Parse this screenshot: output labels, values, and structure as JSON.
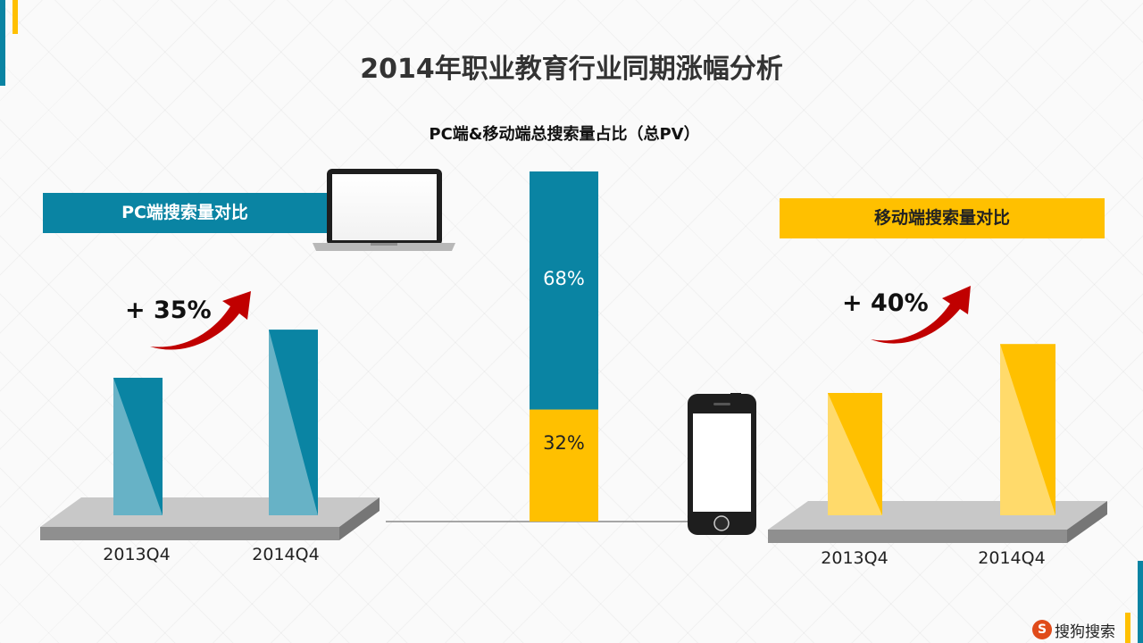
{
  "title": "2014年职业教育行业同期涨幅分析",
  "colors": {
    "teal": "#0a84a3",
    "gold": "#ffc000",
    "arrow": "#c00000"
  },
  "chart_data": [
    {
      "type": "bar",
      "title": "PC端搜索量对比",
      "categories": [
        "2013Q4",
        "2014Q4"
      ],
      "values": [
        100,
        135
      ],
      "annotation": "+ 35%",
      "color": "#0a84a3"
    },
    {
      "type": "bar",
      "title": "PC端&移动端总搜索量占比（总PV）",
      "categories": [
        "PC端",
        "移动端"
      ],
      "stacked": true,
      "values": [
        68,
        32
      ],
      "labels": [
        "68%",
        "32%"
      ]
    },
    {
      "type": "bar",
      "title": "移动端搜索量对比",
      "categories": [
        "2013Q4",
        "2014Q4"
      ],
      "values": [
        100,
        140
      ],
      "annotation": "+ 40%",
      "color": "#ffc000"
    }
  ],
  "logo": {
    "mark": "S",
    "text": "搜狗搜索"
  }
}
